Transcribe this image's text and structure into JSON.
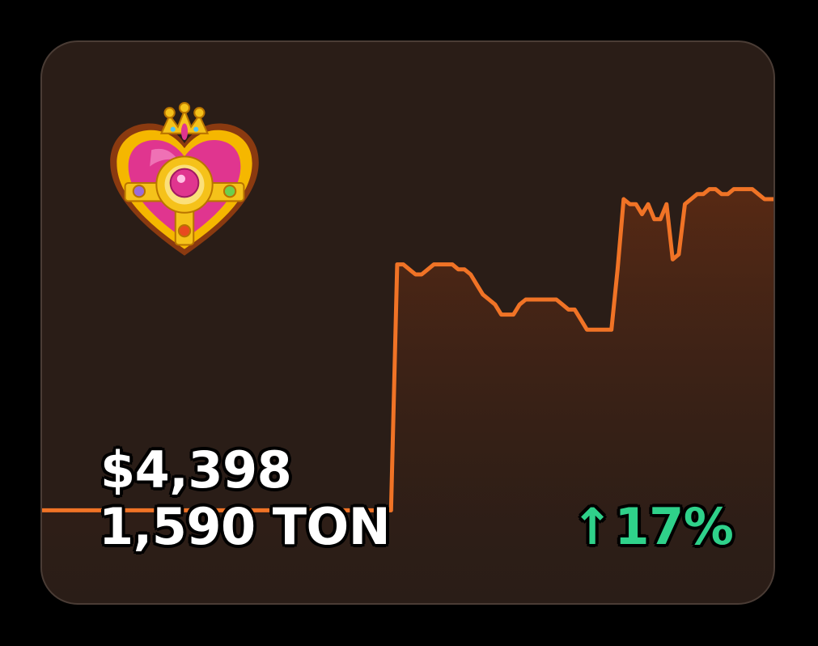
{
  "price": {
    "usd": "$4,398",
    "ton": "1,590 TON",
    "change_arrow": "↑",
    "change_percent": "17%"
  },
  "gift": {
    "icon": "heart-compact-icon"
  },
  "colors": {
    "line": "#f07326",
    "fill_top": "#5a2a14",
    "card_bg": "#2a1d17",
    "positive": "#2fd18a"
  },
  "chart_data": {
    "type": "area",
    "title": "",
    "xlabel": "",
    "ylabel": "",
    "ylim": [
      0,
      100
    ],
    "grid": false,
    "series": [
      {
        "values": [
          18,
          18,
          18,
          18,
          18,
          18,
          18,
          18,
          18,
          18,
          18,
          18,
          18,
          18,
          18,
          18,
          18,
          18,
          18,
          18,
          18,
          18,
          18,
          18,
          18,
          18,
          18,
          18,
          18,
          18,
          18,
          18,
          18,
          18,
          18,
          18,
          18,
          18,
          18,
          18,
          18,
          18,
          18,
          18,
          18,
          18,
          18,
          18,
          18,
          18,
          18,
          18,
          18,
          18,
          18,
          18,
          18,
          18,
          67,
          67,
          66,
          65,
          65,
          66,
          67,
          67,
          67,
          67,
          66,
          66,
          65,
          63,
          61,
          60,
          59,
          57,
          57,
          57,
          59,
          60,
          60,
          60,
          60,
          60,
          60,
          59,
          58,
          58,
          56,
          54,
          54,
          54,
          54,
          54,
          66,
          80,
          79,
          79,
          77,
          79,
          76,
          76,
          79,
          68,
          69,
          79,
          80,
          81,
          81,
          82,
          82,
          81,
          81,
          82,
          82,
          82,
          82,
          81,
          80,
          80,
          80
        ]
      }
    ]
  }
}
